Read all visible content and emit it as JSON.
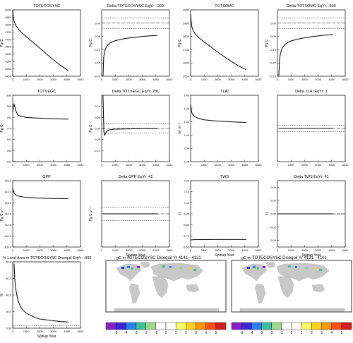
{
  "chart_data": [
    {
      "type": "line",
      "title": "TOTECOSYSC",
      "ylabel": "Pg C",
      "xlabel": "",
      "xlim": [
        0,
        5000
      ],
      "ylim": [
        4450,
        4900
      ],
      "yticks": [
        4450,
        4500,
        4550,
        4600,
        4650,
        4700,
        4750,
        4800,
        4850,
        4900
      ],
      "xticks": [
        0,
        1000,
        2000,
        3000,
        4000,
        5000
      ],
      "series": [
        {
          "x": [
            0,
            50,
            100,
            200,
            300,
            400,
            600,
            800,
            1000,
            1500,
            2000,
            2500,
            3000,
            3500,
            4100
          ],
          "y": [
            4900,
            4845,
            4825,
            4800,
            4785,
            4772,
            4752,
            4734,
            4718,
            4680,
            4640,
            4600,
            4562,
            4525,
            4488
          ]
        }
      ]
    },
    {
      "type": "line",
      "title": "Delta TOTECOSYSC EqYr: -999",
      "ylabel": "Pg C",
      "xlabel": "",
      "xlim": [
        0,
        5000
      ],
      "ylim": [
        -0.2,
        0.05
      ],
      "yticks": [
        -0.2,
        -0.15,
        -0.1,
        -0.05,
        0.0
      ],
      "xticks": [
        0,
        1000,
        2000,
        3000,
        4000,
        5000
      ],
      "ref_lines": [
        0.02,
        -0.02
      ],
      "zero_line": 0.0,
      "series": [
        {
          "x": [
            100,
            150,
            200,
            300,
            400,
            600,
            800,
            1000,
            1500,
            2000,
            2500,
            3000,
            3500,
            4100
          ],
          "y": [
            -0.2,
            -0.13,
            -0.11,
            -0.095,
            -0.085,
            -0.075,
            -0.07,
            -0.066,
            -0.06,
            -0.056,
            -0.053,
            -0.05,
            -0.048,
            -0.046
          ]
        }
      ]
    },
    {
      "type": "line",
      "title": "TOTSOMC",
      "ylabel": "Pg C",
      "xlabel": "",
      "xlim": [
        0,
        5000
      ],
      "ylim": [
        3500,
        4000
      ],
      "yticks": [
        3500,
        3600,
        3700,
        3800,
        3900,
        4000
      ],
      "xticks": [
        0,
        1000,
        2000,
        3000,
        4000,
        5000
      ],
      "series": [
        {
          "x": [
            0,
            50,
            100,
            200,
            300,
            400,
            600,
            800,
            1000,
            1500,
            2000,
            2500,
            3000,
            3500,
            4100
          ],
          "y": [
            3970,
            3900,
            3870,
            3840,
            3825,
            3812,
            3792,
            3774,
            3758,
            3720,
            3682,
            3646,
            3612,
            3580,
            3548
          ]
        }
      ]
    },
    {
      "type": "line",
      "title": "Delta TOTSOMC EqYr: -999",
      "ylabel": "Pg C",
      "xlabel": "",
      "xlim": [
        0,
        5000
      ],
      "ylim": [
        -0.2,
        0.05
      ],
      "yticks": [
        -0.2,
        -0.15,
        -0.1,
        -0.05,
        0.0
      ],
      "xticks": [
        0,
        1000,
        2000,
        3000,
        4000,
        5000
      ],
      "ref_lines": [
        0.02,
        -0.02
      ],
      "zero_line": 0.0,
      "series": [
        {
          "x": [
            100,
            150,
            200,
            300,
            400,
            600,
            800,
            1000,
            1500,
            2000,
            2500,
            3000,
            3500,
            4100
          ],
          "y": [
            -0.2,
            -0.14,
            -0.12,
            -0.1,
            -0.09,
            -0.078,
            -0.072,
            -0.067,
            -0.06,
            -0.055,
            -0.051,
            -0.048,
            -0.045,
            -0.043
          ]
        }
      ]
    },
    {
      "type": "line",
      "title": "TOTVEGC",
      "ylabel": "Pg C",
      "xlabel": "",
      "xlim": [
        0,
        5000
      ],
      "ylim": [
        740,
        800
      ],
      "yticks": [
        740,
        750,
        760,
        770,
        780,
        790,
        800
      ],
      "xticks": [
        0,
        1000,
        2000,
        3000,
        4000,
        5000
      ],
      "series": [
        {
          "x": [
            0,
            50,
            100,
            150,
            200,
            300,
            400,
            600,
            800,
            1000,
            1500,
            2000,
            3000,
            4100
          ],
          "y": [
            785,
            790,
            792,
            790,
            787,
            784,
            782,
            781,
            780.5,
            780,
            779.6,
            779.3,
            778.8,
            778.4
          ]
        }
      ]
    },
    {
      "type": "line",
      "title": "Delta TOTVEGC EqYr: 281",
      "ylabel": "Pg C",
      "xlabel": "",
      "xlim": [
        0,
        5000
      ],
      "ylim": [
        -0.15,
        0.15
      ],
      "yticks": [
        -0.1,
        -0.05,
        0.0,
        0.05,
        0.1
      ],
      "xticks": [
        0,
        1000,
        2000,
        3000,
        4000,
        5000
      ],
      "ref_lines": [
        0.02,
        -0.02
      ],
      "zero_line": 0.0,
      "series": [
        {
          "x": [
            100,
            130,
            160,
            200,
            250,
            300,
            400,
            500,
            700,
            1000,
            2000,
            3000,
            4100
          ],
          "y": [
            0.15,
            0.07,
            -0.01,
            -0.03,
            -0.028,
            -0.02,
            -0.012,
            -0.008,
            -0.005,
            -0.003,
            -0.002,
            -0.001,
            -0.001
          ]
        }
      ]
    },
    {
      "type": "line",
      "title": "TLAI",
      "ylabel": "m² m⁻²",
      "xlabel": "",
      "xlim": [
        0,
        5000
      ],
      "ylim": [
        1.36,
        1.46
      ],
      "yticks": [
        1.36,
        1.38,
        1.4,
        1.42,
        1.44,
        1.46
      ],
      "xticks": [
        0,
        1000,
        2000,
        3000,
        4000,
        5000
      ],
      "series": [
        {
          "x": [
            0,
            50,
            100,
            200,
            300,
            500,
            800,
            1000,
            1500,
            2000,
            3000,
            4100
          ],
          "y": [
            1.446,
            1.438,
            1.433,
            1.43,
            1.428,
            1.426,
            1.424,
            1.423,
            1.422,
            1.421,
            1.42,
            1.419
          ]
        }
      ]
    },
    {
      "type": "line",
      "title": "Delta TLAI EqYr: 1",
      "ylabel": "",
      "xlabel": "",
      "xlim": [
        0,
        5000
      ],
      "ylim": [
        -0.1,
        0.1
      ],
      "yticks": [],
      "xticks": [
        0,
        1000,
        2000,
        3000,
        4000,
        5000
      ],
      "ref_lines": [
        0.01,
        -0.01
      ],
      "zero_line": 0.0,
      "series": [
        {
          "x": [
            100,
            4100
          ],
          "y": [
            0.0,
            0.0
          ]
        }
      ]
    },
    {
      "type": "line",
      "title": "GPP",
      "ylabel": "Pg C yr⁻¹",
      "xlabel": "",
      "xlim": [
        0,
        5000
      ],
      "ylim": [
        109,
        115
      ],
      "yticks": [
        109,
        110,
        111,
        112,
        113,
        114,
        115
      ],
      "xticks": [
        0,
        1000,
        2000,
        3000,
        4000,
        5000
      ],
      "series": [
        {
          "x": [
            0,
            50,
            100,
            200,
            300,
            500,
            800,
            1000,
            1500,
            2000,
            3000,
            4100
          ],
          "y": [
            114.3,
            114.1,
            113.9,
            113.75,
            113.65,
            113.58,
            113.52,
            113.49,
            113.45,
            113.42,
            113.39,
            113.37
          ]
        }
      ]
    },
    {
      "type": "line",
      "title": "Delta GPP EqYr: 41",
      "ylabel": "Pg C yr⁻¹",
      "xlabel": "Spinup Year",
      "xlim": [
        0,
        5000
      ],
      "ylim": [
        -0.1,
        0.1
      ],
      "yticks": [],
      "xticks": [
        0,
        1000,
        2000,
        3000,
        4000,
        5000
      ],
      "ref_lines": [
        0.02,
        -0.02
      ],
      "zero_line": 0.0,
      "series": [
        {
          "x": [
            100,
            4100
          ],
          "y": [
            0.0,
            0.0
          ]
        }
      ]
    },
    {
      "type": "line",
      "title": "TWS",
      "ylabel": "m",
      "xlabel": "Spinup Year",
      "xlim": [
        0,
        5000
      ],
      "ylim": [
        6.6,
        7.2
      ],
      "yticks": [
        6.6,
        6.7,
        6.8,
        6.9,
        7.0,
        7.1,
        7.2
      ],
      "xticks": [
        0,
        1000,
        2000,
        3000,
        4000,
        5000
      ],
      "series": [
        {
          "x": [
            0,
            200,
            500,
            1000,
            2000,
            3000,
            4100
          ],
          "y": [
            6.664,
            6.666,
            6.667,
            6.667,
            6.668,
            6.668,
            6.668
          ]
        }
      ]
    },
    {
      "type": "line",
      "title": "Delta TWS EqYr: 41",
      "ylabel": "m",
      "xlabel": "Spinup Year",
      "xlim": [
        0,
        5000
      ],
      "ylim": [
        -0.05,
        0.05
      ],
      "yticks": [
        -0.04,
        -0.02,
        0.0,
        0.02,
        0.04
      ],
      "xticks": [
        0,
        1000,
        2000,
        3000,
        4000,
        5000
      ],
      "ref_lines": [
        0.0
      ],
      "zero_line": 0.0,
      "series": [
        {
          "x": [
            100,
            4100
          ],
          "y": [
            0.0,
            0.0
          ]
        }
      ]
    },
    {
      "type": "line",
      "title": "% Land Area in TOTECOSYSC Disequil EqYr: -999",
      "ylabel": "%",
      "xlabel": "Spinup Year",
      "xlim": [
        0,
        5000
      ],
      "ylim": [
        0,
        80
      ],
      "yticks": [
        0,
        20,
        40,
        60,
        80
      ],
      "xticks": [
        0,
        1000,
        2000,
        3000,
        4000,
        5000
      ],
      "ref_lines": [
        3
      ],
      "series": [
        {
          "x": [
            100,
            150,
            200,
            300,
            400,
            600,
            800,
            1000,
            1500,
            2000,
            2500,
            3000,
            3500,
            4100
          ],
          "y": [
            78,
            60,
            50,
            40,
            33,
            25,
            21,
            18,
            14,
            11,
            10,
            9,
            8,
            7.5
          ]
        }
      ]
    }
  ],
  "maps": [
    {
      "title": "TOTECOSYSC Disequil Yr 4141 - 4121",
      "units": "gC m⁻²"
    },
    {
      "title": "TOTECOSYSC Disequil Yr 4121 - 4101",
      "units": "gC m⁻²"
    }
  ],
  "colorbar": {
    "labels": [
      "-5",
      "-4",
      "-3",
      "-2",
      "-1",
      "0",
      "1",
      "2",
      "3",
      "4",
      "5"
    ],
    "colors": [
      "#8a1ec8",
      "#3c28d2",
      "#2a7ff0",
      "#3cbea0",
      "#9cd98a",
      "#ffffff",
      "#ffffff",
      "#ffff66",
      "#ffd21e",
      "#ff9600",
      "#ff5014",
      "#d21e1e"
    ]
  },
  "map_style": {
    "land": "#c8c8c8",
    "ocean": "#ffffff",
    "accent": "#2a50dc"
  }
}
